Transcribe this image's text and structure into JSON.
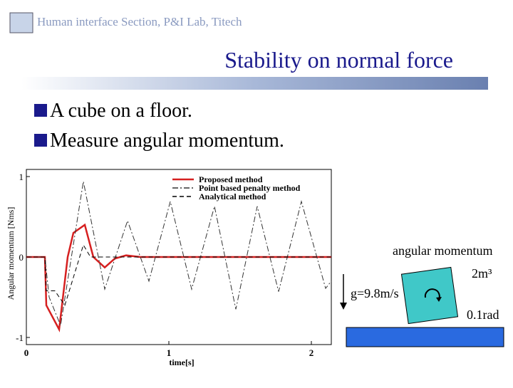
{
  "header": {
    "lab": "Human interface Section, P&I Lab, Titech",
    "title": "Stability on normal force"
  },
  "bullets": [
    "A cube on a floor.",
    "Measure angular momentum."
  ],
  "diagram": {
    "label": "angular momentum",
    "gravity": "g=9.8m/s",
    "size": "2m³",
    "angle": "0.1rad"
  },
  "chart_data": {
    "type": "line",
    "xlabel": "time[s]",
    "ylabel": "Angular momentum [Nms]",
    "xlim": [
      0,
      2.14
    ],
    "ylim": [
      -1,
      1
    ],
    "xticks": [
      0,
      1,
      2
    ],
    "yticks": [
      -1,
      0,
      1
    ],
    "series": [
      {
        "name": "Proposed method",
        "color": "#d62020",
        "dash": "solid",
        "x": [
          0,
          0.13,
          0.14,
          0.23,
          0.29,
          0.33,
          0.41,
          0.47,
          0.55,
          0.62,
          0.7,
          0.8,
          2.14
        ],
        "values": [
          0,
          0,
          -0.6,
          -0.9,
          0,
          0.3,
          0.4,
          0,
          -0.13,
          -0.02,
          0.02,
          0,
          0
        ]
      },
      {
        "name": "Point based penalty method",
        "color": "#333333",
        "dash": "dashdot",
        "x": [
          0,
          0.13,
          0.16,
          0.24,
          0.4,
          0.55,
          0.71,
          0.86,
          1.01,
          1.16,
          1.32,
          1.47,
          1.62,
          1.77,
          1.93,
          2.1,
          2.14
        ],
        "values": [
          0,
          0,
          -0.5,
          -0.85,
          0.94,
          -0.4,
          0.45,
          -0.3,
          0.69,
          -0.4,
          0.63,
          -0.65,
          0.63,
          -0.43,
          0.69,
          -0.39,
          -0.3
        ]
      },
      {
        "name": "Analytical method",
        "color": "#000000",
        "dash": "dashed",
        "x": [
          0,
          0.13,
          0.14,
          0.2,
          0.27,
          0.4,
          0.45,
          2.14
        ],
        "values": [
          0,
          0,
          -0.42,
          -0.42,
          -0.6,
          0.15,
          0,
          0
        ]
      }
    ]
  }
}
